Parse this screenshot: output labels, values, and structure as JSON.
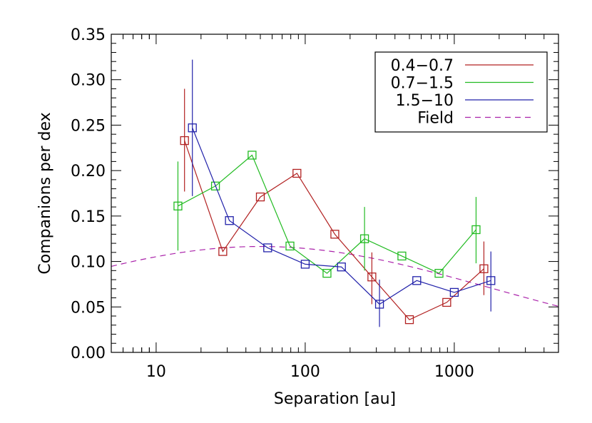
{
  "chart_data": {
    "type": "line",
    "title": "",
    "xlabel": "Separation [au]",
    "ylabel": "Companions per dex",
    "x_scale": "log",
    "xlim": [
      5,
      5000
    ],
    "ylim": [
      0.0,
      0.35
    ],
    "x_major_ticks": [
      10,
      100,
      1000
    ],
    "x_tick_labels": [
      "10",
      "100",
      "1000"
    ],
    "y_ticks": [
      0.0,
      0.05,
      0.1,
      0.15,
      0.2,
      0.25,
      0.3,
      0.35
    ],
    "y_tick_labels": [
      "0.00",
      "0.05",
      "0.10",
      "0.15",
      "0.20",
      "0.25",
      "0.30",
      "0.35"
    ],
    "grid": false,
    "legend_position": "top-right",
    "series": [
      {
        "name": "0.4−0.7",
        "color": "#b22222",
        "marker": "square",
        "x": [
          15.5,
          28,
          50,
          88,
          158,
          280,
          500,
          890,
          1580
        ],
        "y": [
          0.233,
          0.111,
          0.171,
          0.197,
          0.13,
          0.083,
          0.036,
          0.055,
          0.092
        ],
        "err": [
          [
            15.5,
            0.177,
            0.29
          ],
          [
            280,
            0.053,
            0.11
          ],
          [
            1580,
            0.063,
            0.122
          ]
        ]
      },
      {
        "name": "0.7−1.5",
        "color": "#22bb22",
        "marker": "square",
        "x": [
          14,
          25,
          44,
          79,
          140,
          250,
          445,
          790,
          1400
        ],
        "y": [
          0.161,
          0.183,
          0.217,
          0.117,
          0.087,
          0.125,
          0.106,
          0.087,
          0.135
        ],
        "err": [
          [
            14,
            0.112,
            0.21
          ],
          [
            250,
            0.09,
            0.16
          ],
          [
            1400,
            0.098,
            0.171
          ]
        ]
      },
      {
        "name": "1.5−10",
        "color": "#2222aa",
        "marker": "square",
        "x": [
          17.5,
          31,
          56,
          100,
          175,
          315,
          560,
          1000,
          1760
        ],
        "y": [
          0.247,
          0.145,
          0.115,
          0.097,
          0.094,
          0.053,
          0.079,
          0.066,
          0.079
        ],
        "err": [
          [
            17.5,
            0.172,
            0.322
          ],
          [
            315,
            0.028,
            0.08
          ],
          [
            1760,
            0.045,
            0.111
          ]
        ]
      },
      {
        "name": "Field",
        "color": "#aa22aa",
        "dashed": true,
        "model": "lognormal",
        "amplitude": 0.1165,
        "peak_au": 50,
        "sigma_log10": 1.55
      }
    ]
  }
}
